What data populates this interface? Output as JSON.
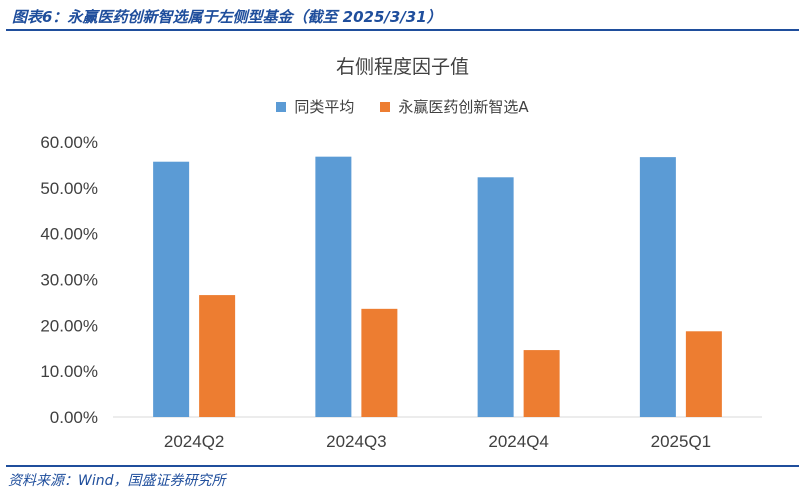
{
  "header": {
    "title": "图表6：永赢医药创新智选属于左侧型基金（截至 2025/3/31）"
  },
  "footer": {
    "source": "资料来源：Wind，国盛证券研究所"
  },
  "colors": {
    "series_1": "#5b9bd5",
    "series_2": "#ed7d31",
    "brand": "#1f4e9c"
  },
  "chart_data": {
    "type": "bar",
    "title": "右侧程度因子值",
    "categories": [
      "2024Q2",
      "2024Q3",
      "2024Q4",
      "2025Q1"
    ],
    "series": [
      {
        "name": "同类平均",
        "values": [
          55.7,
          56.8,
          52.3,
          56.7
        ]
      },
      {
        "name": "永赢医药创新智选A",
        "values": [
          26.6,
          23.6,
          14.6,
          18.7
        ]
      }
    ],
    "ylim": [
      0,
      60
    ],
    "yticks": [
      "0.00%",
      "10.00%",
      "20.00%",
      "30.00%",
      "40.00%",
      "50.00%",
      "60.00%"
    ],
    "grid": false,
    "legend": "top"
  }
}
